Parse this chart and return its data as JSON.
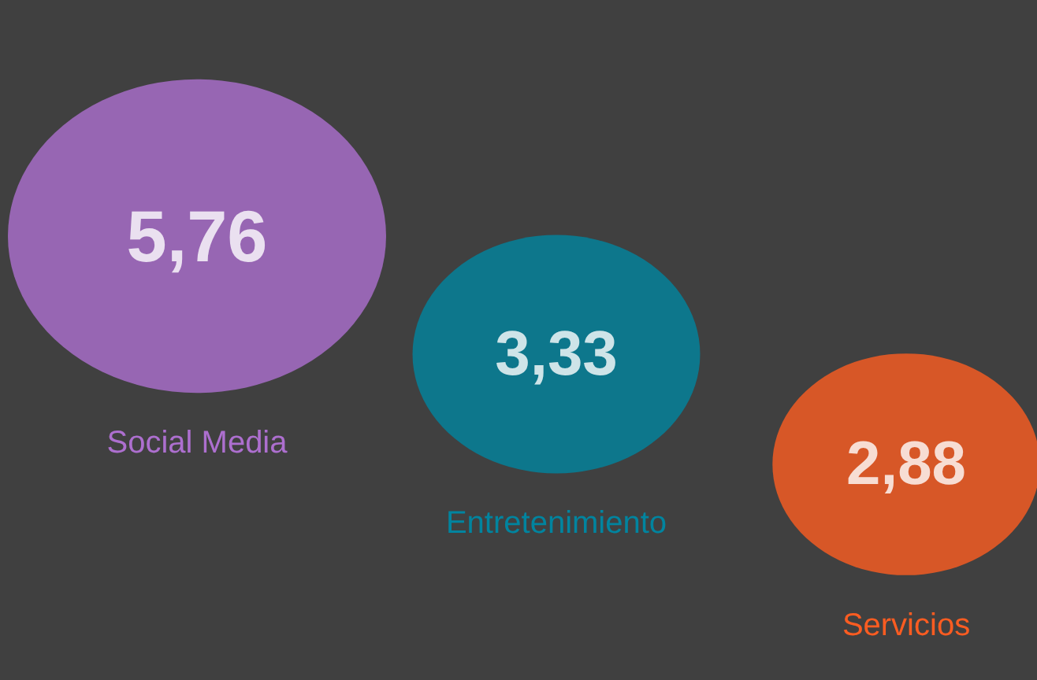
{
  "chart_data": {
    "type": "other",
    "categories": [
      "Social Media",
      "Entretenimiento",
      "Servicios"
    ],
    "values": [
      5.76,
      3.33,
      2.88
    ],
    "value_labels": [
      "5,76",
      "3,33",
      "2,88"
    ],
    "colors": [
      "#ad6fcf",
      "#00849f",
      "#fc5c21"
    ]
  }
}
